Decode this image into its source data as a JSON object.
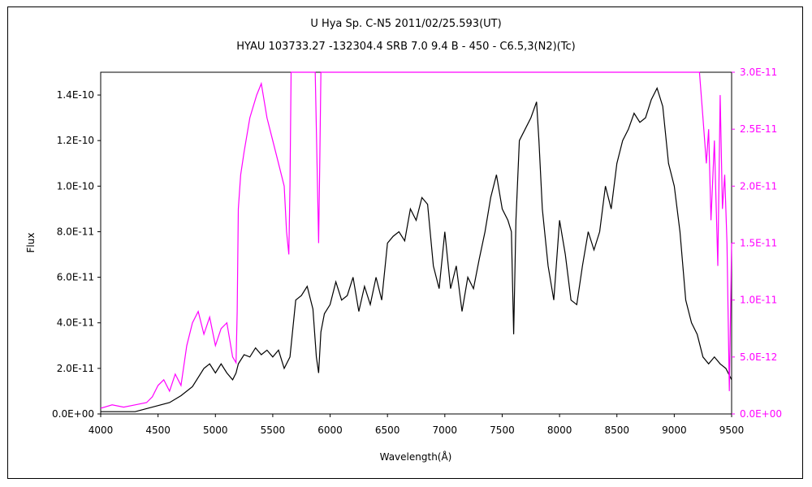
{
  "chart_data": {
    "type": "line",
    "title": "U Hya    Sp. C-N5    2011/02/25.593(UT)",
    "subtitle": "HYAU 103733.27 -132304.4 SRB 7.0 9.4 B - 450 - C6.5,3(N2)(Tc)",
    "xlabel": "Wavelength(Å)",
    "ylabel": "Flux",
    "xlim": [
      4000,
      9500
    ],
    "ylim": [
      0,
      1.5e-10
    ],
    "ylim_right": [
      0,
      3e-11
    ],
    "x_ticks": [
      "4000",
      "4500",
      "5000",
      "5500",
      "6000",
      "6500",
      "7000",
      "7500",
      "8000",
      "8500",
      "9000",
      "9500"
    ],
    "y_ticks": [
      "0.0E+00",
      "2.0E-11",
      "4.0E-11",
      "6.0E-11",
      "8.0E-11",
      "1.0E-10",
      "1.2E-10",
      "1.4E-10"
    ],
    "y_ticks_right": [
      "0.0E+00",
      "5.0E-12",
      "1.0E-11",
      "1.5E-11",
      "2.0E-11",
      "2.5E-11",
      "3.0E-11"
    ],
    "colors": {
      "primary": "#000000",
      "secondary": "#ff00ff"
    },
    "series": [
      {
        "axis": "left",
        "x": [
          4000,
          4300,
          4450,
          4600,
          4700,
          4800,
          4900,
          4950,
          5000,
          5050,
          5100,
          5150,
          5180,
          5190,
          5200,
          5250,
          5300,
          5350,
          5400,
          5450,
          5500,
          5550,
          5600,
          5650,
          5700,
          5750,
          5800,
          5850,
          5880,
          5900,
          5920,
          5950,
          6000,
          6050,
          6100,
          6150,
          6200,
          6250,
          6300,
          6350,
          6400,
          6450,
          6500,
          6550,
          6600,
          6650,
          6700,
          6750,
          6800,
          6850,
          6900,
          6950,
          7000,
          7050,
          7100,
          7150,
          7200,
          7250,
          7300,
          7350,
          7400,
          7450,
          7500,
          7550,
          7580,
          7600,
          7620,
          7650,
          7700,
          7750,
          7800,
          7820,
          7850,
          7900,
          7950,
          8000,
          8050,
          8100,
          8150,
          8200,
          8250,
          8300,
          8350,
          8400,
          8450,
          8500,
          8550,
          8600,
          8650,
          8700,
          8750,
          8800,
          8850,
          8900,
          8950,
          9000,
          9050,
          9100,
          9150,
          9200,
          9250,
          9300,
          9350,
          9400,
          9450,
          9500
        ],
        "values": [
          1e-12,
          1e-12,
          3e-12,
          5e-12,
          8e-12,
          1.2e-11,
          2e-11,
          2.2e-11,
          1.8e-11,
          2.2e-11,
          1.8e-11,
          1.5e-11,
          1.8e-11,
          2e-11,
          2.2e-11,
          2.6e-11,
          2.5e-11,
          2.9e-11,
          2.6e-11,
          2.8e-11,
          2.5e-11,
          2.8e-11,
          2e-11,
          2.5e-11,
          5e-11,
          5.2e-11,
          5.6e-11,
          4.6e-11,
          2.5e-11,
          1.8e-11,
          3.6e-11,
          4.4e-11,
          4.8e-11,
          5.8e-11,
          5e-11,
          5.2e-11,
          6e-11,
          4.5e-11,
          5.6e-11,
          4.8e-11,
          6e-11,
          5e-11,
          7.5e-11,
          7.8e-11,
          8e-11,
          7.6e-11,
          9e-11,
          8.5e-11,
          9.5e-11,
          9.2e-11,
          6.5e-11,
          5.5e-11,
          8e-11,
          5.5e-11,
          6.5e-11,
          4.5e-11,
          6e-11,
          5.5e-11,
          6.8e-11,
          8e-11,
          9.5e-11,
          1.05e-10,
          9e-11,
          8.5e-11,
          8e-11,
          3.5e-11,
          8.5e-11,
          1.2e-10,
          1.25e-10,
          1.3e-10,
          1.37e-10,
          1.2e-10,
          9e-11,
          6.5e-11,
          5e-11,
          8.5e-11,
          7e-11,
          5e-11,
          4.8e-11,
          6.5e-11,
          8e-11,
          7.2e-11,
          8e-11,
          1e-10,
          9e-11,
          1.1e-10,
          1.2e-10,
          1.25e-10,
          1.32e-10,
          1.28e-10,
          1.3e-10,
          1.38e-10,
          1.43e-10,
          1.35e-10,
          1.1e-10,
          1e-10,
          8e-11,
          5e-11,
          4e-11,
          3.5e-11,
          2.5e-11,
          2.2e-11,
          2.5e-11,
          2.2e-11,
          2e-11,
          1.5e-11
        ]
      },
      {
        "axis": "right",
        "x": [
          4000,
          4100,
          4200,
          4300,
          4400,
          4450,
          4500,
          4550,
          4600,
          4650,
          4700,
          4750,
          4800,
          4850,
          4900,
          4950,
          5000,
          5050,
          5100,
          5150,
          5180,
          5190,
          5200,
          5220,
          5250,
          5300,
          5330,
          5360,
          5400,
          5450,
          5500,
          5550,
          5600,
          5620,
          5640,
          5650,
          5660,
          5700,
          5800,
          5870,
          5880,
          5890,
          5900,
          5910,
          5920,
          5930,
          5950,
          6000,
          9220,
          9250,
          9280,
          9300,
          9320,
          9350,
          9380,
          9400,
          9420,
          9440,
          9460,
          9480,
          9500
        ],
        "values": [
          5e-13,
          8e-13,
          6e-13,
          8e-13,
          1e-12,
          1.5e-12,
          2.5e-12,
          3e-12,
          2e-12,
          3.5e-12,
          2.5e-12,
          6e-12,
          8e-12,
          9e-12,
          7e-12,
          8.5e-12,
          6e-12,
          7.5e-12,
          8e-12,
          5e-12,
          4.5e-12,
          9e-12,
          1.8e-11,
          2.1e-11,
          2.3e-11,
          2.6e-11,
          2.7e-11,
          2.8e-11,
          2.9e-11,
          2.6e-11,
          2.4e-11,
          2.2e-11,
          2e-11,
          1.6e-11,
          1.4e-11,
          2e-11,
          3e-11,
          3e-11,
          3e-11,
          3e-11,
          2.5e-11,
          2e-11,
          1.5e-11,
          2.2e-11,
          3e-11,
          3e-11,
          3e-11,
          3e-11,
          3e-11,
          2.6e-11,
          2.2e-11,
          2.5e-11,
          1.7e-11,
          2.4e-11,
          1.3e-11,
          2.8e-11,
          1.8e-11,
          2.1e-11,
          1.5e-11,
          2e-12,
          1.5e-11
        ]
      }
    ]
  }
}
